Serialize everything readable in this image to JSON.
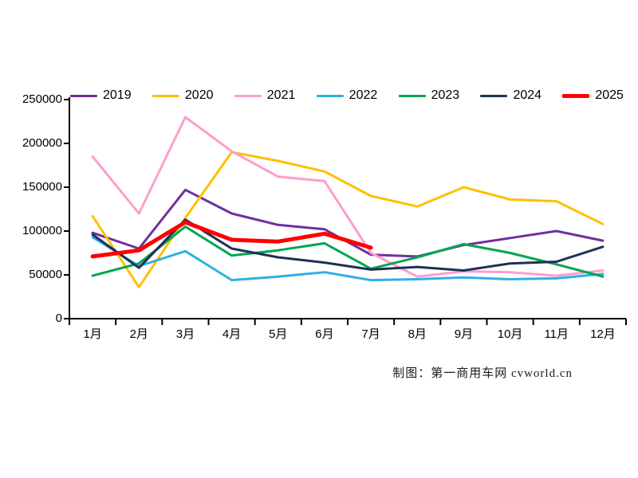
{
  "chart_data": {
    "type": "line",
    "title": "",
    "xlabel": "",
    "ylabel": "",
    "categories": [
      "1月",
      "2月",
      "3月",
      "4月",
      "5月",
      "6月",
      "7月",
      "8月",
      "9月",
      "10月",
      "11月",
      "12月"
    ],
    "series": [
      {
        "name": "2019",
        "color": "#7030A0",
        "line_width": 3,
        "values": [
          98000,
          80000,
          147000,
          120000,
          107000,
          102000,
          73000,
          71000,
          84000,
          92000,
          100000,
          89000
        ]
      },
      {
        "name": "2020",
        "color": "#FFC000",
        "line_width": 3,
        "values": [
          117000,
          36000,
          115000,
          190000,
          180000,
          168000,
          140000,
          128000,
          150000,
          136000,
          134000,
          108000
        ]
      },
      {
        "name": "2021",
        "color": "#FF9DCE",
        "line_width": 3,
        "values": [
          185000,
          120000,
          230000,
          191000,
          162000,
          157000,
          75000,
          48000,
          54000,
          53000,
          49000,
          55000
        ]
      },
      {
        "name": "2022",
        "color": "#2EB0E6",
        "line_width": 3,
        "values": [
          93000,
          60000,
          77000,
          44000,
          48000,
          53000,
          44000,
          45000,
          47000,
          45000,
          46000,
          51000
        ]
      },
      {
        "name": "2023",
        "color": "#00A551",
        "line_width": 3,
        "values": [
          49000,
          63000,
          105000,
          72000,
          78000,
          86000,
          57000,
          70000,
          85000,
          75000,
          62000,
          48000
        ]
      },
      {
        "name": "2024",
        "color": "#1F3057",
        "line_width": 3,
        "values": [
          96000,
          58000,
          113000,
          80000,
          70000,
          64000,
          56000,
          59000,
          55000,
          63000,
          65000,
          82000
        ]
      },
      {
        "name": "2025",
        "color": "#FF0000",
        "line_width": 5,
        "values": [
          71000,
          78000,
          110000,
          90000,
          88000,
          97000,
          81000
        ]
      }
    ],
    "ylim": [
      0,
      250000
    ],
    "yticks": [
      0,
      50000,
      100000,
      150000,
      200000,
      250000
    ],
    "grid": false,
    "legend_position": "top",
    "axis_color": "#000000"
  },
  "caption": "制图：第一商用车网  cvworld.cn"
}
